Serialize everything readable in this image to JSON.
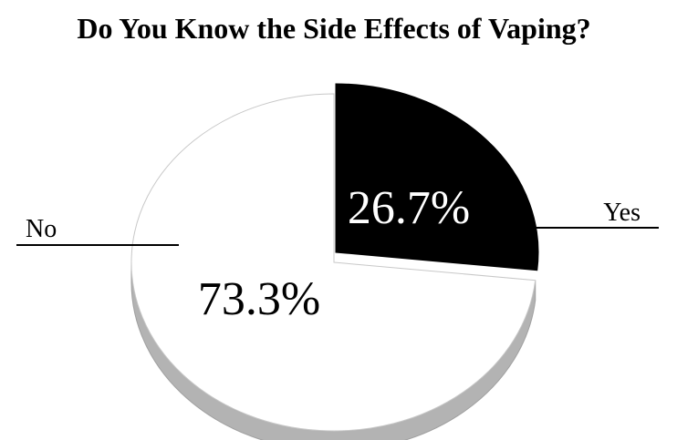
{
  "chart_data": {
    "type": "pie",
    "title": "Do You Know the Side Effects of Vaping?",
    "categories": [
      "Yes",
      "No"
    ],
    "values": [
      26.7,
      73.3
    ],
    "value_labels": [
      "26.7%",
      "73.3%"
    ],
    "colors": [
      "#000000",
      "#ffffff"
    ],
    "label_colors": [
      "#ffffff",
      "#000000"
    ],
    "side_color": "#b3b3b3",
    "outline_color": "#a0a0a0",
    "style": "3d",
    "slice_exploded": "Yes",
    "legend": "leader-lines"
  }
}
